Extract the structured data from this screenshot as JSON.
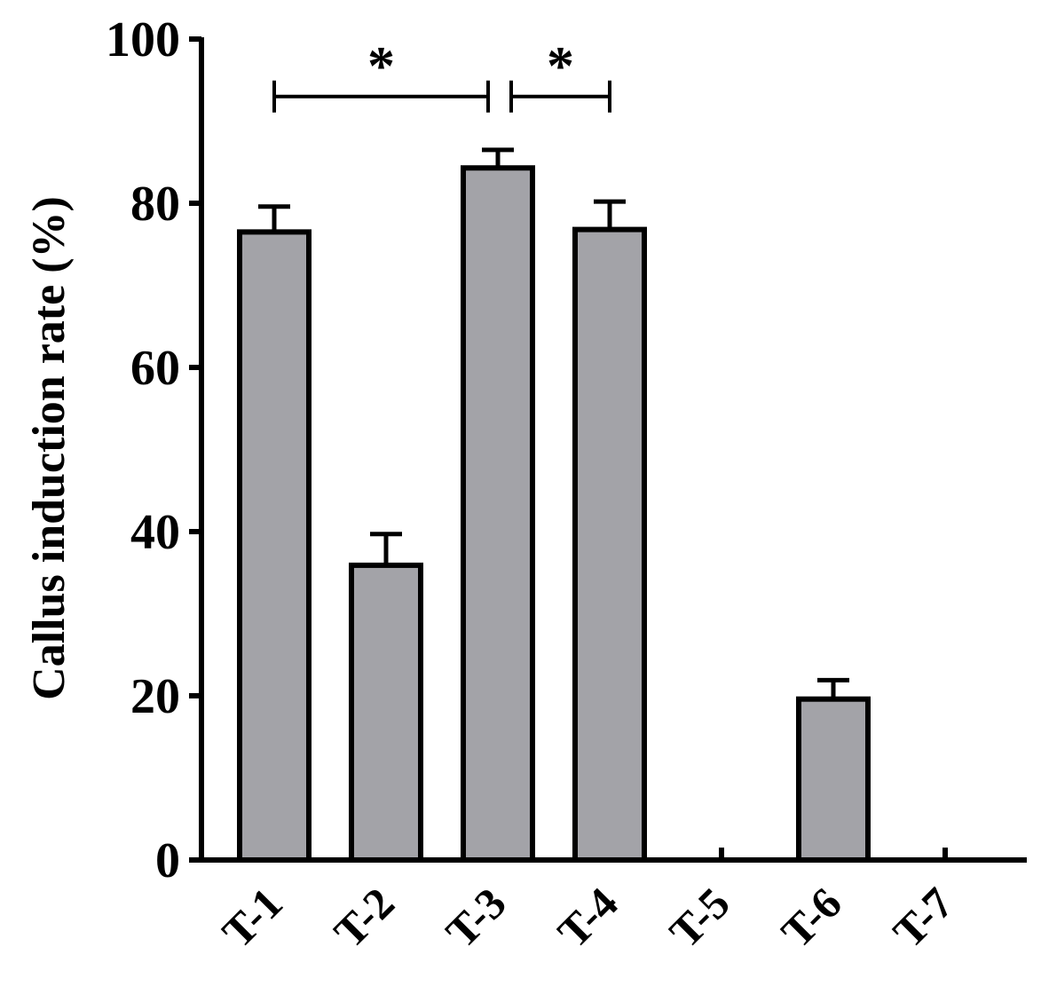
{
  "chart_data": {
    "type": "bar",
    "title": "",
    "xlabel": "",
    "ylabel": "Callus induction rate (%)",
    "ylim": [
      0,
      100
    ],
    "yticks": [
      0,
      20,
      40,
      60,
      80,
      100
    ],
    "categories": [
      "T-1",
      "T-2",
      "T-3",
      "T-4",
      "T-5",
      "T-6",
      "T-7"
    ],
    "values": [
      76.5,
      35.9,
      84.3,
      76.8,
      0,
      19.6,
      0
    ],
    "errors": [
      3.1,
      3.8,
      2.2,
      3.4,
      0,
      2.3,
      0
    ],
    "bar_color": "#a3a3a8",
    "significance": [
      {
        "from": "T-1",
        "to": "T-3",
        "label": "*",
        "y": 93
      },
      {
        "from": "T-3",
        "to": "T-4",
        "label": "*",
        "y": 93
      }
    ],
    "grid": false,
    "legend": "none"
  }
}
